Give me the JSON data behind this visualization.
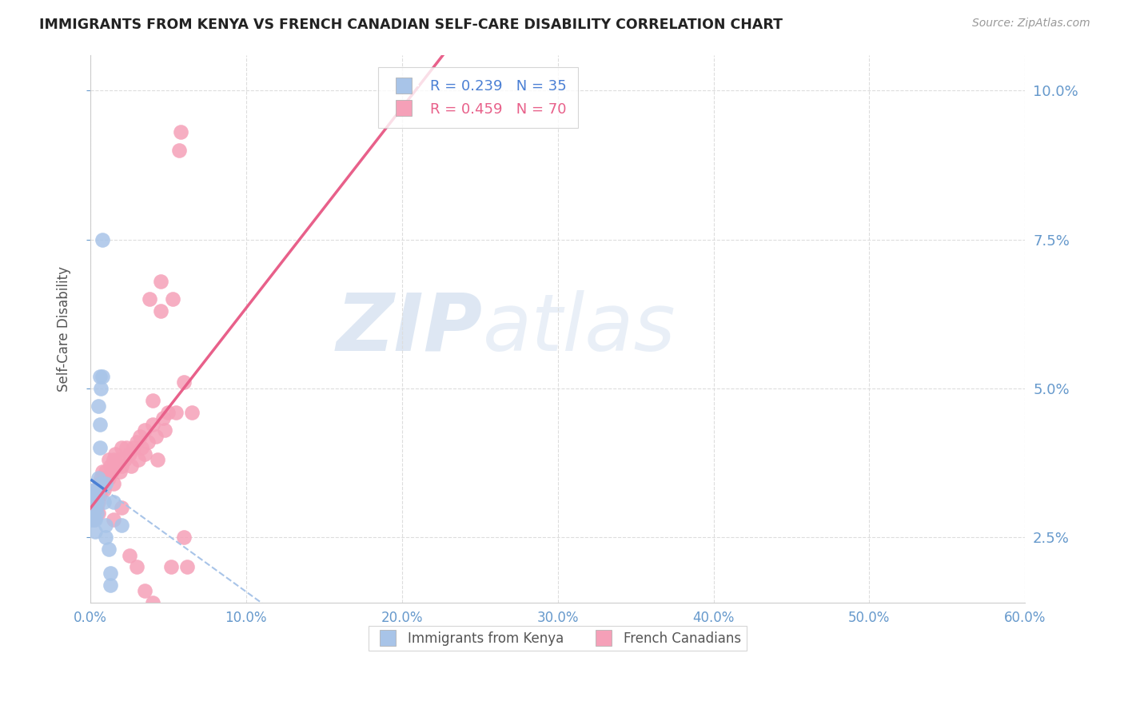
{
  "title": "IMMIGRANTS FROM KENYA VS FRENCH CANADIAN SELF-CARE DISABILITY CORRELATION CHART",
  "source": "Source: ZipAtlas.com",
  "ylabel": "Self-Care Disability",
  "xlim": [
    0.0,
    0.6
  ],
  "ylim": [
    0.014,
    0.106
  ],
  "yticks": [
    0.025,
    0.05,
    0.075,
    0.1
  ],
  "xticks": [
    0.0,
    0.1,
    0.2,
    0.3,
    0.4,
    0.5,
    0.6
  ],
  "kenya_color": "#a8c4e8",
  "kenya_line_color": "#4a7fd4",
  "kenya_dashed_color": "#a8c4e8",
  "french_color": "#f5a0b8",
  "french_line_color": "#e8608a",
  "R_kenya": 0.239,
  "N_kenya": 35,
  "R_french": 0.459,
  "N_french": 70,
  "background_color": "#ffffff",
  "grid_color": "#dddddd",
  "axis_label_color": "#6699cc",
  "kenya_points": [
    [
      0.001,
      0.031
    ],
    [
      0.001,
      0.03
    ],
    [
      0.001,
      0.029
    ],
    [
      0.001,
      0.028
    ],
    [
      0.002,
      0.033
    ],
    [
      0.002,
      0.031
    ],
    [
      0.002,
      0.03
    ],
    [
      0.002,
      0.028
    ],
    [
      0.003,
      0.032
    ],
    [
      0.003,
      0.031
    ],
    [
      0.003,
      0.03
    ],
    [
      0.003,
      0.028
    ],
    [
      0.003,
      0.026
    ],
    [
      0.004,
      0.033
    ],
    [
      0.004,
      0.031
    ],
    [
      0.004,
      0.029
    ],
    [
      0.005,
      0.047
    ],
    [
      0.005,
      0.035
    ],
    [
      0.005,
      0.033
    ],
    [
      0.006,
      0.052
    ],
    [
      0.006,
      0.044
    ],
    [
      0.006,
      0.04
    ],
    [
      0.007,
      0.05
    ],
    [
      0.007,
      0.034
    ],
    [
      0.008,
      0.075
    ],
    [
      0.008,
      0.052
    ],
    [
      0.009,
      0.031
    ],
    [
      0.01,
      0.034
    ],
    [
      0.01,
      0.027
    ],
    [
      0.01,
      0.025
    ],
    [
      0.012,
      0.023
    ],
    [
      0.013,
      0.019
    ],
    [
      0.013,
      0.017
    ],
    [
      0.015,
      0.031
    ],
    [
      0.02,
      0.027
    ]
  ],
  "french_points": [
    [
      0.001,
      0.03
    ],
    [
      0.001,
      0.029
    ],
    [
      0.002,
      0.031
    ],
    [
      0.002,
      0.028
    ],
    [
      0.003,
      0.033
    ],
    [
      0.003,
      0.031
    ],
    [
      0.004,
      0.032
    ],
    [
      0.004,
      0.03
    ],
    [
      0.005,
      0.033
    ],
    [
      0.005,
      0.031
    ],
    [
      0.005,
      0.029
    ],
    [
      0.006,
      0.034
    ],
    [
      0.006,
      0.032
    ],
    [
      0.007,
      0.035
    ],
    [
      0.007,
      0.033
    ],
    [
      0.008,
      0.036
    ],
    [
      0.008,
      0.034
    ],
    [
      0.009,
      0.035
    ],
    [
      0.009,
      0.033
    ],
    [
      0.01,
      0.036
    ],
    [
      0.011,
      0.035
    ],
    [
      0.012,
      0.038
    ],
    [
      0.012,
      0.035
    ],
    [
      0.013,
      0.037
    ],
    [
      0.014,
      0.036
    ],
    [
      0.015,
      0.038
    ],
    [
      0.015,
      0.034
    ],
    [
      0.016,
      0.039
    ],
    [
      0.017,
      0.037
    ],
    [
      0.018,
      0.038
    ],
    [
      0.019,
      0.036
    ],
    [
      0.02,
      0.04
    ],
    [
      0.02,
      0.037
    ],
    [
      0.022,
      0.038
    ],
    [
      0.023,
      0.04
    ],
    [
      0.025,
      0.039
    ],
    [
      0.026,
      0.037
    ],
    [
      0.028,
      0.04
    ],
    [
      0.03,
      0.041
    ],
    [
      0.031,
      0.038
    ],
    [
      0.032,
      0.042
    ],
    [
      0.033,
      0.04
    ],
    [
      0.035,
      0.043
    ],
    [
      0.035,
      0.039
    ],
    [
      0.037,
      0.041
    ],
    [
      0.038,
      0.065
    ],
    [
      0.04,
      0.048
    ],
    [
      0.04,
      0.044
    ],
    [
      0.042,
      0.042
    ],
    [
      0.043,
      0.038
    ],
    [
      0.045,
      0.068
    ],
    [
      0.045,
      0.063
    ],
    [
      0.047,
      0.045
    ],
    [
      0.048,
      0.043
    ],
    [
      0.05,
      0.046
    ],
    [
      0.052,
      0.02
    ],
    [
      0.053,
      0.065
    ],
    [
      0.055,
      0.046
    ],
    [
      0.057,
      0.09
    ],
    [
      0.058,
      0.093
    ],
    [
      0.06,
      0.051
    ],
    [
      0.06,
      0.025
    ],
    [
      0.062,
      0.02
    ],
    [
      0.065,
      0.046
    ],
    [
      0.025,
      0.022
    ],
    [
      0.03,
      0.02
    ],
    [
      0.035,
      0.016
    ],
    [
      0.04,
      0.014
    ],
    [
      0.02,
      0.03
    ],
    [
      0.015,
      0.028
    ]
  ],
  "kenya_line_x": [
    0.001,
    0.01
  ],
  "kenya_line_slope": 1.8,
  "kenya_line_intercept": 0.0265,
  "french_line_slope": 0.048,
  "french_line_intercept": 0.028
}
